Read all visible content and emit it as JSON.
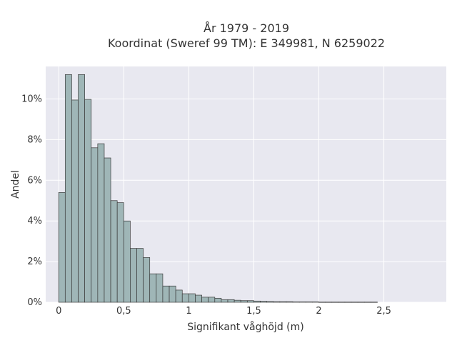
{
  "chart_data": {
    "type": "bar",
    "title": "År 1979 - 2019",
    "subtitle": "Koordinat (Sweref 99 TM): E 349981, N 6259022",
    "xlabel": "Signifikant våghöjd (m)",
    "ylabel": "Andel",
    "xlim": [
      -0.1,
      2.98
    ],
    "ylim": [
      0,
      11.6
    ],
    "x_ticks": [
      0,
      0.5,
      1,
      1.5,
      2,
      2.5
    ],
    "x_tick_labels": [
      "0",
      "0,5",
      "1",
      "1,5",
      "2",
      "2,5"
    ],
    "y_ticks": [
      0,
      2,
      4,
      6,
      8,
      10
    ],
    "y_tick_labels": [
      "0%",
      "2%",
      "4%",
      "6%",
      "8%",
      "10%"
    ],
    "bin_width": 0.05,
    "bin_starts": [
      0,
      0.05,
      0.1,
      0.15,
      0.2,
      0.25,
      0.3,
      0.35,
      0.4,
      0.45,
      0.5,
      0.55,
      0.6,
      0.65,
      0.7,
      0.75,
      0.8,
      0.85,
      0.9,
      0.95,
      1.0,
      1.05,
      1.1,
      1.15,
      1.2,
      1.25,
      1.3,
      1.35,
      1.4,
      1.45,
      1.5,
      1.55,
      1.6,
      1.65,
      1.7,
      1.75,
      1.8,
      1.85,
      1.9,
      1.95,
      2.0,
      2.05,
      2.1,
      2.15,
      2.2,
      2.25,
      2.3,
      2.35,
      2.4
    ],
    "values": [
      5.4,
      11.2,
      9.95,
      11.2,
      9.98,
      7.6,
      7.8,
      7.1,
      5.0,
      4.9,
      4.0,
      2.65,
      2.65,
      2.2,
      1.4,
      1.4,
      0.8,
      0.8,
      0.6,
      0.42,
      0.42,
      0.35,
      0.25,
      0.25,
      0.2,
      0.13,
      0.13,
      0.1,
      0.08,
      0.08,
      0.06,
      0.05,
      0.04,
      0.03,
      0.03,
      0.03,
      0.02,
      0.02,
      0.02,
      0.02,
      0.01,
      0.01,
      0.01,
      0.01,
      0.01,
      0.01,
      0.01,
      0.01,
      0.01
    ],
    "grid": true,
    "colors": {
      "bar_fill": "#9fb6b7",
      "bar_edge": "#3a3a3a",
      "plot_background": "#e8e8f0",
      "grid": "#ffffff",
      "text": "#333333"
    }
  }
}
